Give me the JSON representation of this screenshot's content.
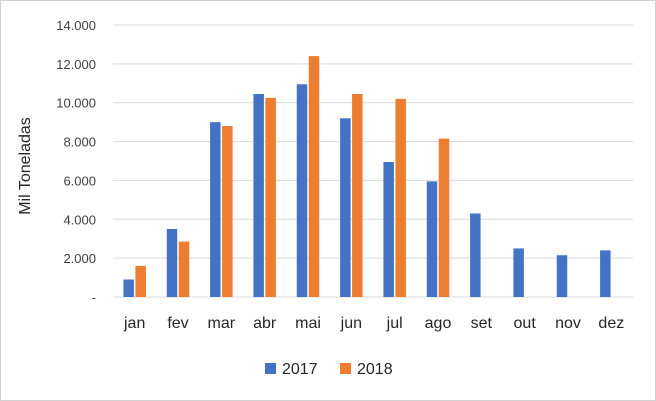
{
  "chart_data": {
    "type": "bar",
    "ylabel": "Mil Toneladas",
    "ylim": [
      0,
      14000
    ],
    "ytick_labels": [
      "-",
      "2.000",
      "4.000",
      "6.000",
      "8.000",
      "10.000",
      "12.000",
      "14.000"
    ],
    "ytick_values": [
      0,
      2000,
      4000,
      6000,
      8000,
      10000,
      12000,
      14000
    ],
    "grid": true,
    "legend_position": "bottom",
    "categories": [
      "jan",
      "fev",
      "mar",
      "abr",
      "mai",
      "jun",
      "jul",
      "ago",
      "set",
      "out",
      "nov",
      "dez"
    ],
    "series": [
      {
        "name": "2017",
        "color": "#4472c4",
        "values": [
          900,
          3500,
          9000,
          10450,
          10950,
          9200,
          6950,
          5950,
          4300,
          2500,
          2150,
          2400
        ]
      },
      {
        "name": "2018",
        "color": "#ed7d31",
        "values": [
          1600,
          2850,
          8800,
          10250,
          12400,
          10450,
          10200,
          8150,
          null,
          null,
          null,
          null
        ]
      }
    ]
  }
}
